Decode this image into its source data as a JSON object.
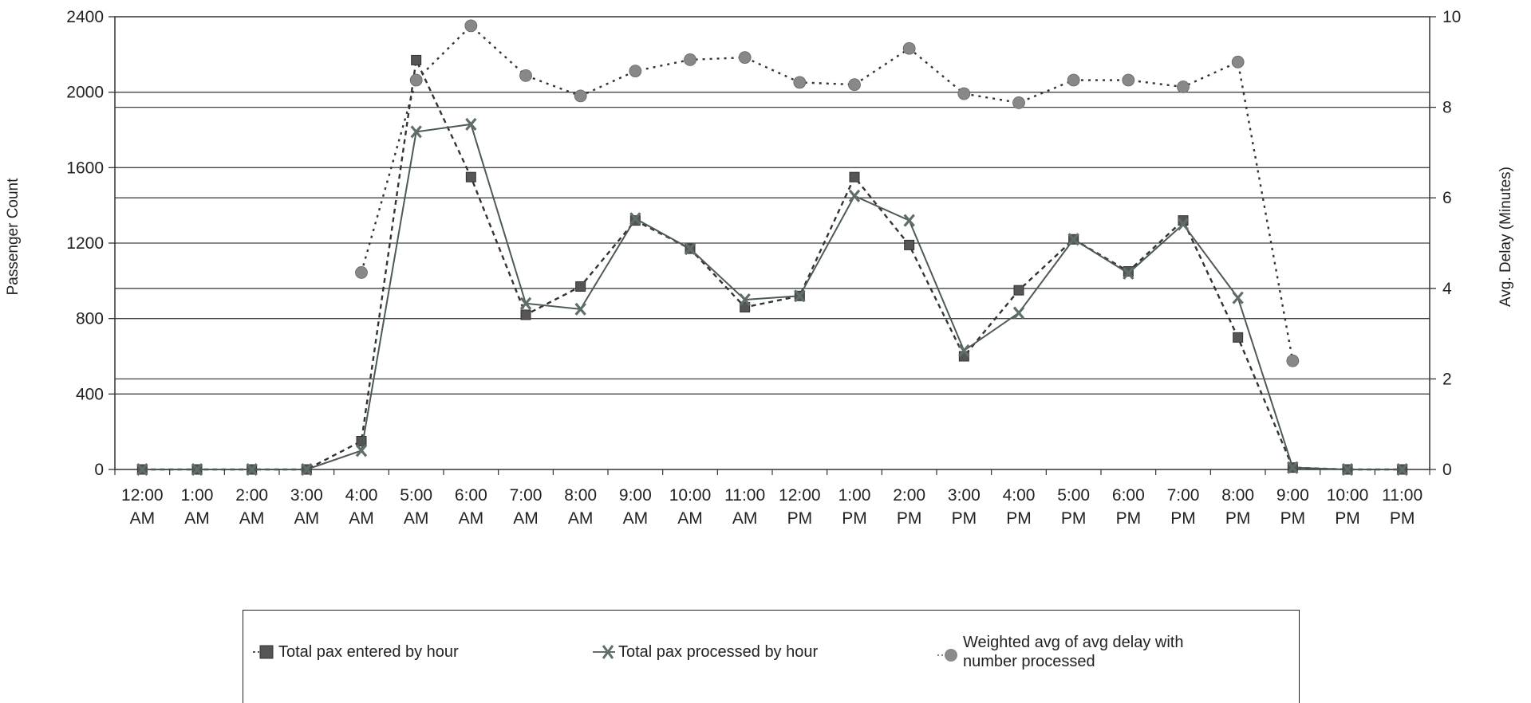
{
  "chart_data": {
    "type": "line",
    "categories": [
      [
        "12:00",
        "AM"
      ],
      [
        "1:00",
        "AM"
      ],
      [
        "2:00",
        "AM"
      ],
      [
        "3:00",
        "AM"
      ],
      [
        "4:00",
        "AM"
      ],
      [
        "5:00",
        "AM"
      ],
      [
        "6:00",
        "AM"
      ],
      [
        "7:00",
        "AM"
      ],
      [
        "8:00",
        "AM"
      ],
      [
        "9:00",
        "AM"
      ],
      [
        "10:00",
        "AM"
      ],
      [
        "11:00",
        "AM"
      ],
      [
        "12:00",
        "PM"
      ],
      [
        "1:00",
        "PM"
      ],
      [
        "2:00",
        "PM"
      ],
      [
        "3:00",
        "PM"
      ],
      [
        "4:00",
        "PM"
      ],
      [
        "5:00",
        "PM"
      ],
      [
        "6:00",
        "PM"
      ],
      [
        "7:00",
        "PM"
      ],
      [
        "8:00",
        "PM"
      ],
      [
        "9:00",
        "PM"
      ],
      [
        "10:00",
        "PM"
      ],
      [
        "11:00",
        "PM"
      ]
    ],
    "ylabel": "Passenger Count",
    "ylim": [
      0,
      2400
    ],
    "yticks": [
      0,
      400,
      800,
      1200,
      1600,
      2000,
      2400
    ],
    "y2label": "Avg. Delay (Minutes)",
    "y2lim": [
      0,
      10
    ],
    "y2ticks": [
      0,
      2,
      4,
      6,
      8,
      10
    ],
    "grid": true,
    "legend_position": "bottom",
    "series": [
      {
        "name": "Total pax entered by hour",
        "axis": "left",
        "marker": "square",
        "line": "dashed",
        "color": "#555555",
        "values": [
          0,
          0,
          0,
          0,
          150,
          2170,
          1550,
          820,
          970,
          1320,
          1170,
          860,
          920,
          1550,
          1190,
          600,
          950,
          1220,
          1050,
          1320,
          700,
          10,
          0,
          0
        ]
      },
      {
        "name": "Total pax processed by hour",
        "axis": "left",
        "marker": "x",
        "line": "solid",
        "color": "#5f6e68",
        "values": [
          0,
          0,
          0,
          0,
          100,
          1790,
          1830,
          880,
          850,
          1330,
          1170,
          900,
          920,
          1450,
          1320,
          630,
          830,
          1220,
          1040,
          1300,
          910,
          10,
          0,
          0
        ]
      },
      {
        "name": "Weighted avg of avg delay with number processed",
        "axis": "right",
        "marker": "circle",
        "line": "dotted",
        "color": "#888888",
        "values": [
          null,
          null,
          null,
          null,
          4.35,
          8.6,
          9.8,
          8.7,
          8.25,
          8.8,
          9.05,
          9.1,
          8.55,
          8.5,
          9.3,
          8.3,
          8.1,
          8.6,
          8.6,
          8.45,
          9.0,
          2.4,
          null,
          null
        ]
      }
    ]
  },
  "legend": [
    {
      "label": "Total pax entered by hour",
      "icon": "square-marker-icon"
    },
    {
      "label": "Total pax processed by hour",
      "icon": "x-marker-icon"
    },
    {
      "label": "Weighted avg of avg delay with\nnumber processed",
      "icon": "circle-marker-icon"
    }
  ]
}
